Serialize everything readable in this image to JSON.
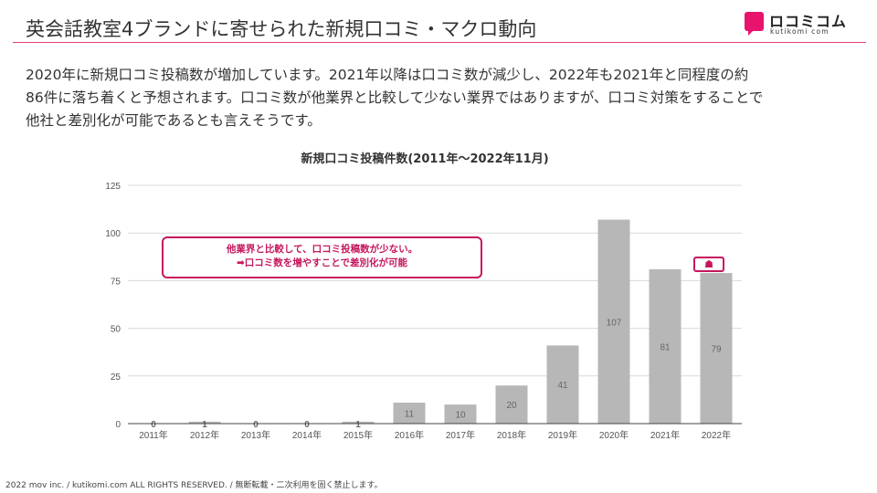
{
  "header": {
    "title": "英会話教室4ブランドに寄せられた新規口コミ・マクロ動向",
    "logo_text": "ロコミコム",
    "logo_sub": "kutikomi com"
  },
  "description": {
    "lines": [
      "2020年に新規口コミ投稿数が増加しています。2021年以降は口コミ数が減少し、2022年も2021年と同程度の約",
      "86件に落ち着くと予想されます。口コミ数が他業界と比較して少ない業界ではありますが、口コミ対策をすることで",
      "他社と差別化が可能であるとも言えそうです。"
    ]
  },
  "callout": {
    "line1": "他業界と比較して、口コミ投稿数が少ない。",
    "line2": "➡口コミ数を増やすことで差別化が可能"
  },
  "marker_glyph": "☗",
  "footer": {
    "text": "2022 mov inc. / kutikomi.com ALL RIGHTS RESERVED. / 無断転載・二次利用を固く禁止します。"
  },
  "colors": {
    "accent": "#c5175e",
    "logo": "#e8136d",
    "bar": "#b7b7b7",
    "grid": "#d9d9d9"
  },
  "chart_data": {
    "type": "bar",
    "title": "新規口コミ投稿件数(2011年〜2022年11月)",
    "categories": [
      "2011年",
      "2012年",
      "2013年",
      "2014年",
      "2015年",
      "2016年",
      "2017年",
      "2018年",
      "2019年",
      "2020年",
      "2021年",
      "2022年"
    ],
    "values": [
      0,
      1,
      0,
      0,
      1,
      11,
      10,
      20,
      41,
      107,
      81,
      79
    ],
    "ylim": [
      0,
      125
    ],
    "yticks": [
      0,
      25,
      50,
      75,
      100,
      125
    ],
    "grid": true,
    "xlabel": "",
    "ylabel": ""
  }
}
